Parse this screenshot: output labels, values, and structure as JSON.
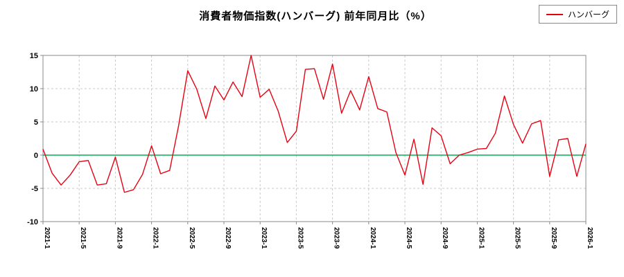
{
  "page": {
    "background": "#ffffff"
  },
  "chart_data": {
    "type": "line",
    "title": "消費者物価指数(ハンバーグ) 前年同月比（%）",
    "legend": {
      "label": "ハンバーグ",
      "position": "top-right"
    },
    "xlabel": "",
    "ylabel": "",
    "ylim": [
      -10,
      15
    ],
    "yticks": [
      -10,
      -5,
      0,
      5,
      10,
      15
    ],
    "xtick_every": 4,
    "xtick_labels": [
      "2021-1",
      "2021-5",
      "2021-9",
      "2022-1",
      "2022-5",
      "2022-9",
      "2023-1",
      "2023-5",
      "2023-9",
      "2024-1",
      "2024-5",
      "2024-9",
      "2025-1",
      "2025-5",
      "2025-9",
      "2026-1"
    ],
    "grid": true,
    "grid_style": "dashed",
    "zero_line": true,
    "x": [
      "2021-1",
      "2021-2",
      "2021-3",
      "2021-4",
      "2021-5",
      "2021-6",
      "2021-7",
      "2021-8",
      "2021-9",
      "2021-10",
      "2021-11",
      "2021-12",
      "2022-1",
      "2022-2",
      "2022-3",
      "2022-4",
      "2022-5",
      "2022-6",
      "2022-7",
      "2022-8",
      "2022-9",
      "2022-10",
      "2022-11",
      "2022-12",
      "2023-1",
      "2023-2",
      "2023-3",
      "2023-4",
      "2023-5",
      "2023-6",
      "2023-7",
      "2023-8",
      "2023-9",
      "2023-10",
      "2023-11",
      "2023-12",
      "2024-1",
      "2024-2",
      "2024-3",
      "2024-4",
      "2024-5",
      "2024-6",
      "2024-7",
      "2024-8",
      "2024-9",
      "2024-10",
      "2024-11",
      "2024-12",
      "2025-1",
      "2025-2",
      "2025-3",
      "2025-4",
      "2025-5",
      "2025-6",
      "2025-7",
      "2025-8",
      "2025-9",
      "2025-10",
      "2025-11",
      "2025-12",
      "2026-1"
    ],
    "series": [
      {
        "name": "ハンバーグ",
        "values": [
          0.9,
          -2.7,
          -4.5,
          -3.0,
          -1.0,
          -0.8,
          -4.5,
          -4.3,
          -0.3,
          -5.6,
          -5.2,
          -2.9,
          1.4,
          -2.8,
          -2.3,
          4.5,
          12.7,
          9.9,
          5.5,
          10.4,
          8.3,
          11.0,
          8.8,
          15.0,
          8.7,
          9.9,
          6.6,
          1.9,
          3.6,
          12.9,
          13.0,
          8.4,
          13.7,
          6.3,
          9.7,
          6.8,
          11.8,
          7.0,
          6.5,
          0.4,
          -3.0,
          2.4,
          -4.4,
          4.1,
          2.9,
          -1.3,
          0.0,
          0.4,
          0.9,
          1.0,
          3.3,
          8.9,
          4.6,
          1.8,
          4.7,
          5.2,
          -3.2,
          2.3,
          2.5,
          -3.2,
          1.7
        ]
      }
    ],
    "colors": {
      "series": "#e60012",
      "zero_line": "#00b050",
      "grid": "#c8c8c8",
      "axis": "#888888",
      "text": "#000000",
      "background": "#ffffff"
    }
  }
}
